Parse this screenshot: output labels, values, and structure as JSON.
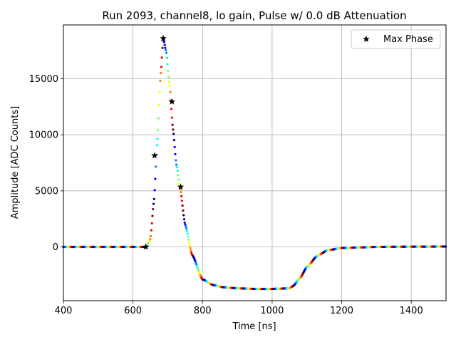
{
  "chart_data": {
    "type": "scatter",
    "title": "Run 2093, channel8, lo gain, Pulse w/ 0.0 dB Attenuation",
    "xlabel": "Time [ns]",
    "ylabel": "Amplitude [ADC Counts]",
    "xlim": [
      400,
      1500
    ],
    "ylim": [
      -4800,
      19800
    ],
    "xticks": [
      400,
      600,
      800,
      1000,
      1200,
      1400
    ],
    "yticks": [
      0,
      5000,
      10000,
      15000
    ],
    "grid": true,
    "legend_position": "top-right",
    "colormap": [
      "#00007f",
      "#0000ff",
      "#007fff",
      "#00ffff",
      "#7fff7f",
      "#ffff00",
      "#ff7f00",
      "#ff0000",
      "#7f0000"
    ],
    "pulse_curve": {
      "x": [
        400,
        630,
        640,
        650,
        660,
        670,
        680,
        687,
        695,
        705,
        715,
        725,
        735,
        750,
        770,
        800,
        830,
        860,
        900,
        950,
        1000,
        1050,
        1060,
        1080,
        1100,
        1130,
        1160,
        1200,
        1250,
        1300,
        1400,
        1500
      ],
      "y": [
        0,
        0,
        30,
        700,
        4000,
        9500,
        15500,
        18600,
        17500,
        14500,
        10500,
        7300,
        5300,
        2000,
        -700,
        -2900,
        -3400,
        -3600,
        -3700,
        -3750,
        -3750,
        -3700,
        -3500,
        -2800,
        -1800,
        -800,
        -300,
        -100,
        -50,
        0,
        20,
        30
      ]
    },
    "series": [
      {
        "name": "Max Phase",
        "marker": "star",
        "color": "#000000",
        "points": [
          {
            "x": 637,
            "y": 0
          },
          {
            "x": 662,
            "y": 8150
          },
          {
            "x": 687,
            "y": 18600
          },
          {
            "x": 712,
            "y": 12950
          },
          {
            "x": 737,
            "y": 5350
          }
        ]
      }
    ]
  }
}
